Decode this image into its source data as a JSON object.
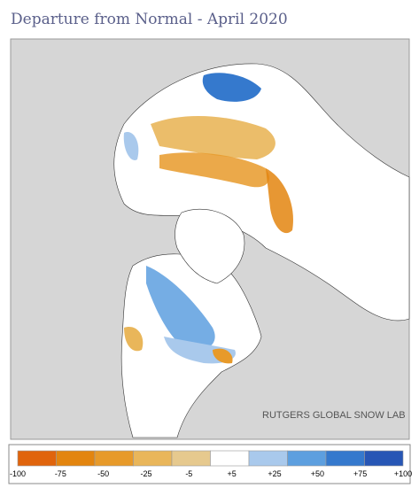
{
  "title": "Departure from Normal - April 2020",
  "credit": "RUTGERS GLOBAL SNOW LAB",
  "legend": {
    "labels": [
      "-100",
      "-75",
      "-50",
      "-25",
      "-5",
      "+5",
      "+25",
      "+50",
      "+75",
      "+100"
    ],
    "colors": [
      "#e0640c",
      "#e3850f",
      "#e79a2a",
      "#e9b65a",
      "#e6c98e",
      "#ffffff",
      "#a9c9ec",
      "#5d9fdf",
      "#3579cd",
      "#2756b5"
    ]
  }
}
